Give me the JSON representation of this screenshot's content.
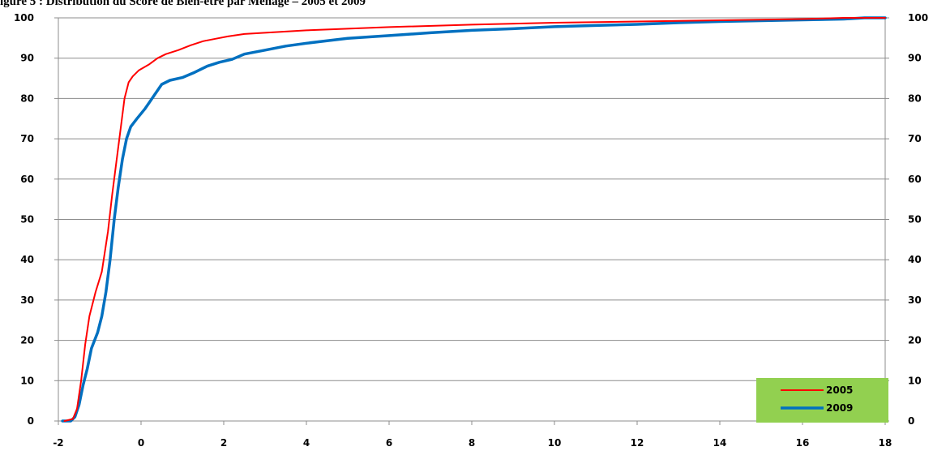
{
  "chart_data": {
    "type": "line",
    "title": "igure 5 : Distribution du Score de Bien-être par Ménage – 2005 et 2009",
    "xlabel": "",
    "ylabel": "",
    "xlim": [
      -2,
      18
    ],
    "ylim": [
      0,
      100
    ],
    "x_ticks": [
      "-2",
      "0",
      "2",
      "4",
      "6",
      "8",
      "10",
      "12",
      "14",
      "16",
      "18"
    ],
    "y_ticks": [
      "0",
      "10",
      "20",
      "30",
      "40",
      "50",
      "60",
      "70",
      "80",
      "90",
      "100"
    ],
    "y_axis_mirrored_right": true,
    "grid": "horizontal",
    "legend_position": "bottom-right",
    "legend_background": "#92d050",
    "series": [
      {
        "name": "2005",
        "color": "#ff0000",
        "points": [
          [
            -1.85,
            0
          ],
          [
            -1.65,
            0.5
          ],
          [
            -1.55,
            3
          ],
          [
            -1.45,
            10
          ],
          [
            -1.35,
            19
          ],
          [
            -1.25,
            26
          ],
          [
            -1.1,
            32
          ],
          [
            -0.95,
            37
          ],
          [
            -0.8,
            47
          ],
          [
            -0.7,
            56
          ],
          [
            -0.6,
            64
          ],
          [
            -0.5,
            72
          ],
          [
            -0.4,
            80
          ],
          [
            -0.3,
            84
          ],
          [
            -0.2,
            85.5
          ],
          [
            -0.05,
            87
          ],
          [
            0.2,
            88.5
          ],
          [
            0.4,
            90
          ],
          [
            0.6,
            91
          ],
          [
            0.9,
            92
          ],
          [
            1.2,
            93.2
          ],
          [
            1.5,
            94.2
          ],
          [
            1.8,
            94.8
          ],
          [
            2.1,
            95.4
          ],
          [
            2.5,
            96
          ],
          [
            3,
            96.3
          ],
          [
            4,
            96.9
          ],
          [
            5,
            97.3
          ],
          [
            6,
            97.7
          ],
          [
            8,
            98.3
          ],
          [
            10,
            98.8
          ],
          [
            12,
            99.1
          ],
          [
            14,
            99.4
          ],
          [
            16,
            99.7
          ],
          [
            17,
            100
          ],
          [
            18,
            100
          ]
        ]
      },
      {
        "name": "2009",
        "color": "#0070c0",
        "points": [
          [
            -1.9,
            0
          ],
          [
            -1.7,
            0
          ],
          [
            -1.6,
            1
          ],
          [
            -1.5,
            4
          ],
          [
            -1.4,
            9
          ],
          [
            -1.3,
            13
          ],
          [
            -1.2,
            18
          ],
          [
            -1.05,
            22
          ],
          [
            -0.95,
            26
          ],
          [
            -0.85,
            32
          ],
          [
            -0.75,
            40
          ],
          [
            -0.65,
            50
          ],
          [
            -0.55,
            58
          ],
          [
            -0.45,
            65
          ],
          [
            -0.35,
            70
          ],
          [
            -0.25,
            73
          ],
          [
            -0.1,
            75
          ],
          [
            0.1,
            77.5
          ],
          [
            0.3,
            80.5
          ],
          [
            0.5,
            83.5
          ],
          [
            0.7,
            84.5
          ],
          [
            1.0,
            85.2
          ],
          [
            1.3,
            86.5
          ],
          [
            1.6,
            88
          ],
          [
            1.9,
            89
          ],
          [
            2.2,
            89.7
          ],
          [
            2.5,
            91
          ],
          [
            3,
            92
          ],
          [
            3.5,
            93
          ],
          [
            4,
            93.7
          ],
          [
            4.5,
            94.3
          ],
          [
            5,
            94.9
          ],
          [
            6,
            95.6
          ],
          [
            7,
            96.3
          ],
          [
            8,
            96.9
          ],
          [
            9,
            97.3
          ],
          [
            10,
            97.8
          ],
          [
            11,
            98.1
          ],
          [
            12,
            98.4
          ],
          [
            13,
            98.8
          ],
          [
            14,
            99.1
          ],
          [
            15,
            99.3
          ],
          [
            16,
            99.5
          ],
          [
            17,
            99.7
          ],
          [
            17.5,
            100
          ],
          [
            18,
            100
          ]
        ]
      }
    ]
  }
}
